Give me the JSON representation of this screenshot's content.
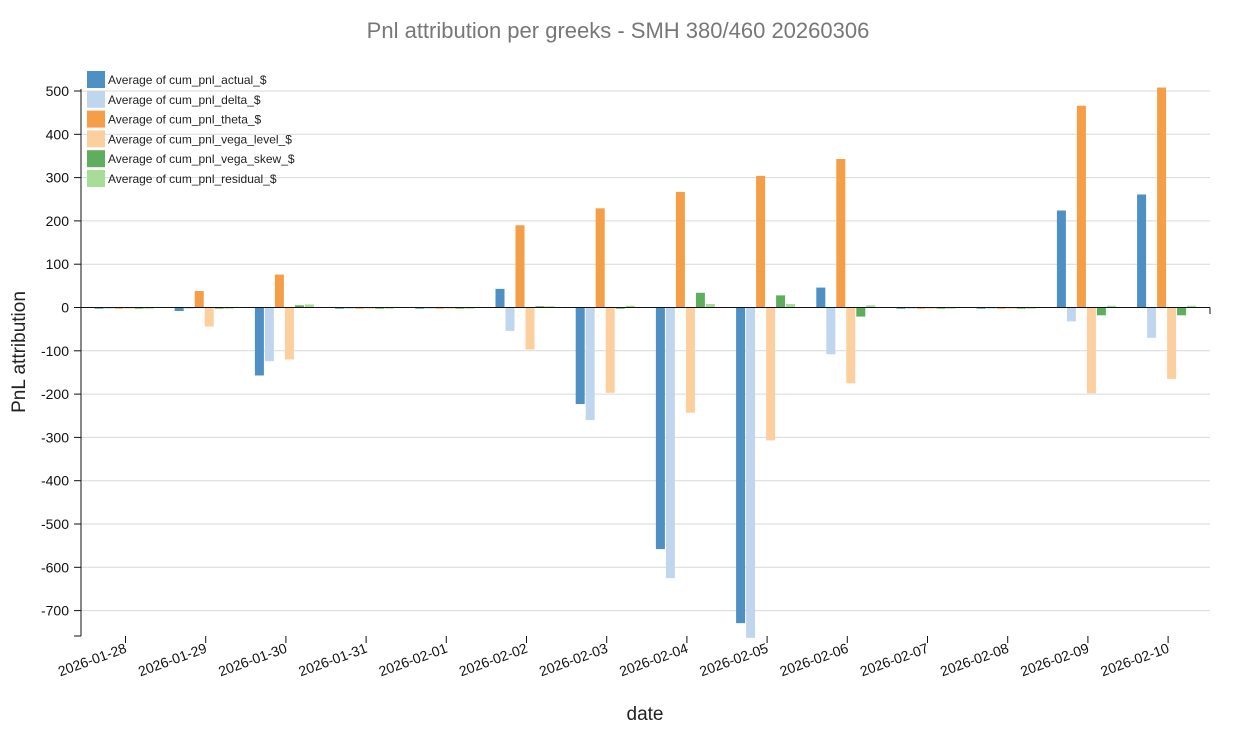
{
  "chart_data": {
    "type": "bar",
    "title": "Pnl attribution per greeks - SMH 380/460 20260306",
    "xlabel": "date",
    "ylabel": "PnL attribution",
    "ylim": [
      -760,
      510
    ],
    "yticks": [
      500,
      400,
      300,
      200,
      100,
      0,
      -100,
      -200,
      -300,
      -400,
      -500,
      -600,
      -700
    ],
    "grid": true,
    "legend_position": "top-left",
    "categories": [
      "2026-01-28",
      "2026-01-29",
      "2026-01-30",
      "2026-01-31",
      "2026-02-01",
      "2026-02-02",
      "2026-02-03",
      "2026-02-04",
      "2026-02-05",
      "2026-02-06",
      "2026-02-07",
      "2026-02-08",
      "2026-02-09",
      "2026-02-10"
    ],
    "series": [
      {
        "name": "Average of cum_pnl_actual_$",
        "color": "#4e8fc4",
        "values": [
          -2,
          -8,
          -157,
          -2,
          -2,
          43,
          -223,
          -558,
          -729,
          46,
          -2,
          -2,
          224,
          261
        ]
      },
      {
        "name": "Average of cum_pnl_delta_$",
        "color": "#c0d6ef",
        "values": [
          0,
          0,
          -124,
          0,
          0,
          -54,
          -260,
          -625,
          -763,
          -108,
          0,
          0,
          -32,
          -70
        ]
      },
      {
        "name": "Average of cum_pnl_theta_$",
        "color": "#f59d47",
        "values": [
          -2,
          38,
          76,
          -2,
          -2,
          190,
          229,
          267,
          304,
          343,
          -2,
          -2,
          466,
          508
        ]
      },
      {
        "name": "Average of cum_pnl_vega_level_$",
        "color": "#fccf9f",
        "values": [
          -2,
          -44,
          -120,
          -2,
          -2,
          -97,
          -197,
          -243,
          -307,
          -175,
          -2,
          -2,
          -198,
          -165
        ]
      },
      {
        "name": "Average of cum_pnl_vega_skew_$",
        "color": "#5eae5e",
        "values": [
          -2,
          -2,
          5,
          -2,
          -2,
          3,
          0,
          34,
          28,
          -21,
          -2,
          -2,
          -18,
          -18
        ]
      },
      {
        "name": "Average of cum_pnl_residual_$",
        "color": "#a8dd98",
        "values": [
          0,
          0,
          7,
          0,
          0,
          3,
          4,
          8,
          8,
          5,
          0,
          0,
          4,
          4
        ]
      }
    ]
  }
}
